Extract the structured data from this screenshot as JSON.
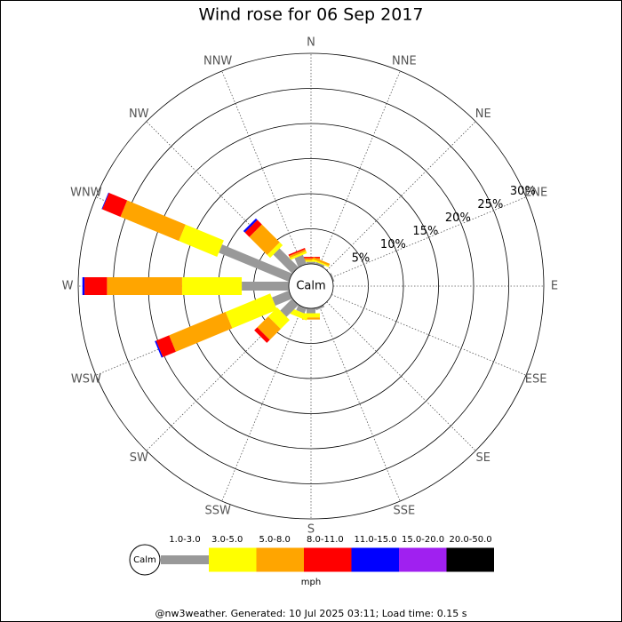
{
  "chart_data": {
    "type": "windrose",
    "title": "Wind rose for 06 Sep 2017",
    "categories": [
      "N",
      "NNE",
      "NE",
      "ENE",
      "E",
      "ESE",
      "SE",
      "SSE",
      "S",
      "SSW",
      "SW",
      "WSW",
      "W",
      "WNW",
      "NW",
      "NNW"
    ],
    "series": [
      {
        "name": "1.0-3.0",
        "color": "#999999",
        "values": [
          0.3,
          0.3,
          0,
          0.2,
          0,
          0,
          0,
          0.3,
          0.7,
          0.8,
          2.4,
          2.6,
          6.7,
          10.8,
          3.8,
          1.4
        ]
      },
      {
        "name": "3.0-5.0",
        "color": "#ffff00",
        "values": [
          0.2,
          0.2,
          0,
          0,
          0,
          0,
          0,
          0,
          0.6,
          0.8,
          1.8,
          6.9,
          8.5,
          5.9,
          0.6,
          0.3
        ]
      },
      {
        "name": "5.0-8.0",
        "color": "#ffa500",
        "values": [
          0.3,
          0.3,
          0,
          0,
          0,
          0,
          0,
          0,
          0.3,
          0,
          2.2,
          8.7,
          10.7,
          9.0,
          3.6,
          0.3
        ]
      },
      {
        "name": "8.0-11.0",
        "color": "#ff0000",
        "values": [
          0.2,
          0,
          0,
          0,
          0,
          0,
          0,
          0,
          0,
          0,
          0.6,
          2.0,
          3.2,
          2.8,
          0.9,
          0.2
        ]
      },
      {
        "name": "11.0-15.0",
        "color": "#0000ff",
        "values": [
          0,
          0,
          0,
          0,
          0,
          0,
          0,
          0,
          0,
          0,
          0,
          0.2,
          0.3,
          0.1,
          0.3,
          0
        ]
      },
      {
        "name": "15.0-20.0",
        "color": "#a020f0",
        "values": [
          0,
          0,
          0,
          0,
          0,
          0,
          0,
          0,
          0,
          0,
          0,
          0,
          0,
          0,
          0,
          0
        ]
      },
      {
        "name": "20.0-50.0",
        "color": "#000000",
        "values": [
          0,
          0,
          0,
          0,
          0,
          0,
          0,
          0,
          0,
          0,
          0,
          0,
          0,
          0,
          0,
          0
        ]
      }
    ],
    "rlim": [
      0,
      30
    ],
    "rticks": [
      {
        "value": 5,
        "label": "5%"
      },
      {
        "value": 10,
        "label": "10%"
      },
      {
        "value": 15,
        "label": "15%"
      },
      {
        "value": 20,
        "label": "20%"
      },
      {
        "value": 25,
        "label": "25%"
      },
      {
        "value": 30,
        "label": "30%"
      }
    ],
    "calm_label": "Calm",
    "unit": "mph"
  },
  "footer": "@nw3weather. Generated: 10 Jul 2025 03:11; Load time: 0.15 s"
}
